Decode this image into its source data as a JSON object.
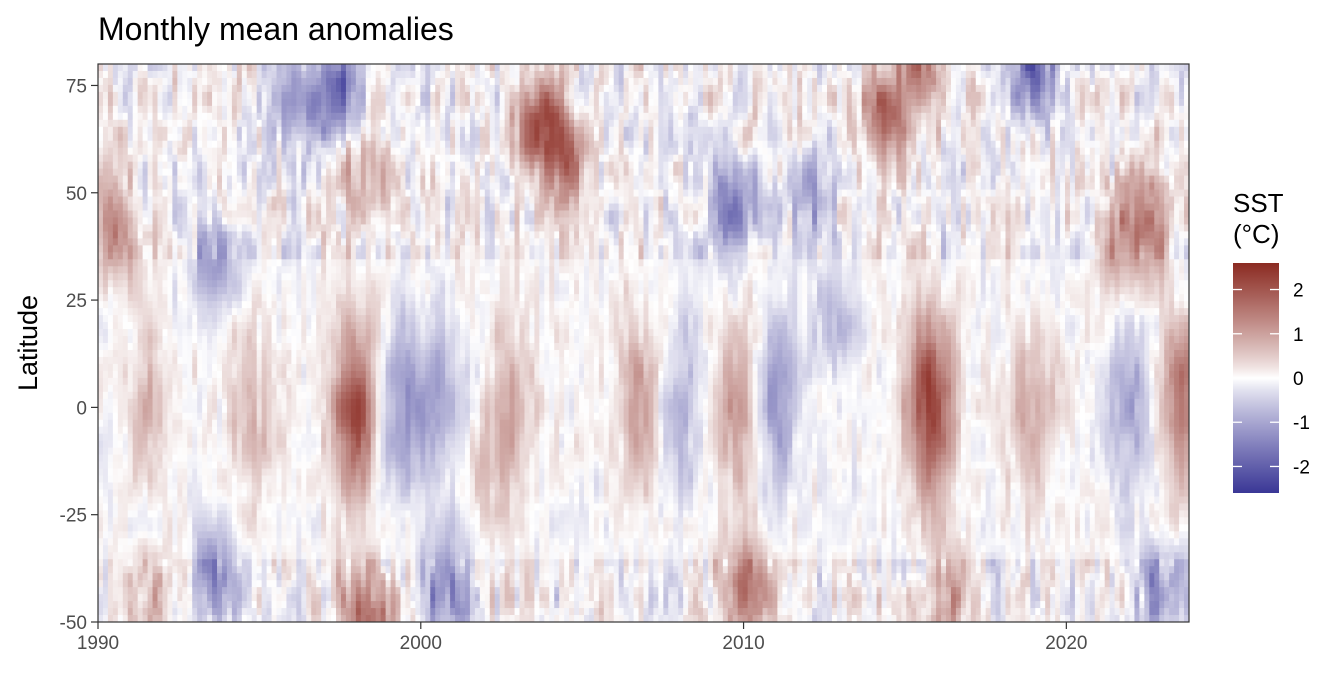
{
  "chart_data": {
    "type": "heatmap",
    "title": "Monthly mean anomalies",
    "xlabel": "",
    "ylabel": "Latitude",
    "xlim": [
      1990,
      2023.8
    ],
    "ylim": [
      -50,
      80
    ],
    "x_ticks": [
      1990,
      2000,
      2010,
      2020
    ],
    "y_ticks": [
      -50,
      -25,
      0,
      25,
      50,
      75
    ],
    "legend": {
      "title_line1": "SST",
      "title_line2": "(°C)",
      "placement": "right",
      "range": [
        -2.6,
        2.6
      ],
      "ticks": [
        2,
        1,
        0,
        -1,
        -2
      ],
      "color_low": "#3a3796",
      "color_mid": "#ffffff",
      "color_high": "#8b2b22"
    },
    "grid": false,
    "features": [
      {
        "x": 1998.0,
        "lat": 0,
        "value": 2.2
      },
      {
        "x": 2015.8,
        "lat": 0,
        "value": 2.3
      },
      {
        "x": 2009.9,
        "lat": 0,
        "value": 1.2
      },
      {
        "x": 2002.8,
        "lat": 0,
        "value": 0.9
      },
      {
        "x": 2006.8,
        "lat": 0,
        "value": 1.0
      },
      {
        "x": 1991.6,
        "lat": 0,
        "value": 0.8
      },
      {
        "x": 1994.8,
        "lat": 0,
        "value": 0.7
      },
      {
        "x": 2023.6,
        "lat": 0,
        "value": 1.6
      },
      {
        "x": 2018.9,
        "lat": 0,
        "value": 0.9
      },
      {
        "x": 1999.3,
        "lat": 0,
        "value": -1.1
      },
      {
        "x": 2000.5,
        "lat": 0,
        "value": -1.0
      },
      {
        "x": 2008.0,
        "lat": 0,
        "value": -0.8
      },
      {
        "x": 2010.9,
        "lat": 0,
        "value": -1.2
      },
      {
        "x": 2022.0,
        "lat": 0,
        "value": -1.0
      },
      {
        "x": 2003.7,
        "lat": 66,
        "value": 2.0
      },
      {
        "x": 2004.5,
        "lat": 58,
        "value": 1.3
      },
      {
        "x": 1997.5,
        "lat": 73,
        "value": -2.0
      },
      {
        "x": 1996.2,
        "lat": 70,
        "value": -1.3
      },
      {
        "x": 2014.4,
        "lat": 68,
        "value": 1.8
      },
      {
        "x": 1990.5,
        "lat": 40,
        "value": 1.3
      },
      {
        "x": 2022.5,
        "lat": 43,
        "value": 1.5
      },
      {
        "x": 2021.5,
        "lat": 38,
        "value": 1.1
      },
      {
        "x": 1993.6,
        "lat": 35,
        "value": -1.2
      },
      {
        "x": 2009.6,
        "lat": 45,
        "value": -1.5
      },
      {
        "x": 2012.0,
        "lat": 50,
        "value": -1.0
      },
      {
        "x": 1998.3,
        "lat": 55,
        "value": 1.1
      },
      {
        "x": 2000.7,
        "lat": -42,
        "value": -1.5
      },
      {
        "x": 1993.6,
        "lat": -39,
        "value": -1.2
      },
      {
        "x": 2010.0,
        "lat": -43,
        "value": 1.8
      },
      {
        "x": 1998.3,
        "lat": -48,
        "value": 2.0
      },
      {
        "x": 1991.8,
        "lat": -44,
        "value": 1.0
      },
      {
        "x": 2016.3,
        "lat": -45,
        "value": 1.1
      },
      {
        "x": 2023.0,
        "lat": -43,
        "value": -1.3
      },
      {
        "x": 2019.0,
        "lat": 79,
        "value": -1.8
      },
      {
        "x": 2015.6,
        "lat": 79,
        "value": 1.6
      },
      {
        "x": 2012.8,
        "lat": 20,
        "value": -0.7
      },
      {
        "x": 2002.0,
        "lat": -15,
        "value": 0.5
      }
    ]
  }
}
